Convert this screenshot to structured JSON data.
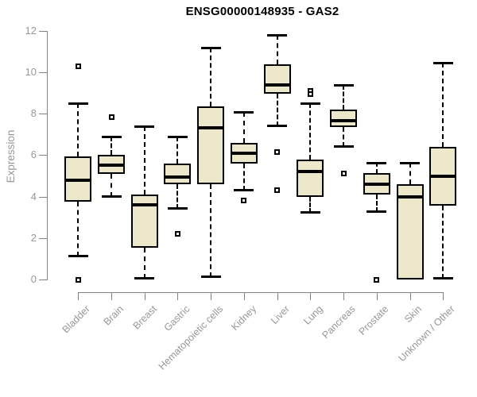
{
  "chart_data": {
    "type": "boxplot",
    "title": "ENSG00000148935 - GAS2",
    "ylabel": "Expression",
    "xlabel": "",
    "ylim": [
      0,
      12
    ],
    "yticks": [
      0,
      2,
      4,
      6,
      8,
      10,
      12
    ],
    "grid": false,
    "legend": "none",
    "categories": [
      "Bladder",
      "Brain",
      "Breast",
      "Gastric",
      "Hematopoietic cells",
      "Kidney",
      "Liver",
      "Lung",
      "Pancreas",
      "Prostate",
      "Skin",
      "Unknown / Other"
    ],
    "series": [
      {
        "name": "Bladder",
        "low": 1.1,
        "q1": 3.75,
        "median": 4.8,
        "q3": 5.95,
        "high": 8.5,
        "outliers": [
          10.3,
          0.0
        ]
      },
      {
        "name": "Brain",
        "low": 4.0,
        "q1": 5.1,
        "median": 5.5,
        "q3": 6.0,
        "high": 6.9,
        "outliers": [
          7.85
        ]
      },
      {
        "name": "Breast",
        "low": 0.05,
        "q1": 1.55,
        "median": 3.6,
        "q3": 4.1,
        "high": 7.4,
        "outliers": []
      },
      {
        "name": "Gastric",
        "low": 3.4,
        "q1": 4.6,
        "median": 4.95,
        "q3": 5.6,
        "high": 6.9,
        "outliers": [
          2.2
        ]
      },
      {
        "name": "Hematopoietic cells",
        "low": 0.1,
        "q1": 4.6,
        "median": 7.3,
        "q3": 8.35,
        "high": 11.2,
        "outliers": []
      },
      {
        "name": "Kidney",
        "low": 4.3,
        "q1": 5.6,
        "median": 6.1,
        "q3": 6.6,
        "high": 8.1,
        "outliers": [
          3.8
        ]
      },
      {
        "name": "Liver",
        "low": 7.4,
        "q1": 8.95,
        "median": 9.4,
        "q3": 10.4,
        "high": 11.8,
        "outliers": [
          6.15,
          4.3
        ]
      },
      {
        "name": "Lung",
        "low": 3.2,
        "q1": 4.0,
        "median": 5.2,
        "q3": 5.8,
        "high": 8.5,
        "outliers": [
          9.1,
          8.95
        ]
      },
      {
        "name": "Pancreas",
        "low": 6.4,
        "q1": 7.35,
        "median": 7.65,
        "q3": 8.2,
        "high": 9.4,
        "outliers": [
          5.1
        ]
      },
      {
        "name": "Prostate",
        "low": 3.25,
        "q1": 4.1,
        "median": 4.6,
        "q3": 5.15,
        "high": 5.65,
        "outliers": [
          0.0
        ]
      },
      {
        "name": "Skin",
        "low": 0.0,
        "q1": 0.0,
        "median": 4.0,
        "q3": 4.6,
        "high": 5.65,
        "outliers": []
      },
      {
        "name": "Unknown / Other",
        "low": 0.05,
        "q1": 3.55,
        "median": 5.0,
        "q3": 6.4,
        "high": 10.45,
        "outliers": []
      }
    ],
    "colors": {
      "box_fill": "#EDE8CC",
      "box_border": "#000000",
      "median": "#000000",
      "whisker": "#000000",
      "outlier": "#000000",
      "axis": "#808080",
      "axis_text": "#979797",
      "title": "#000000",
      "background": "#FFFFFF"
    }
  }
}
